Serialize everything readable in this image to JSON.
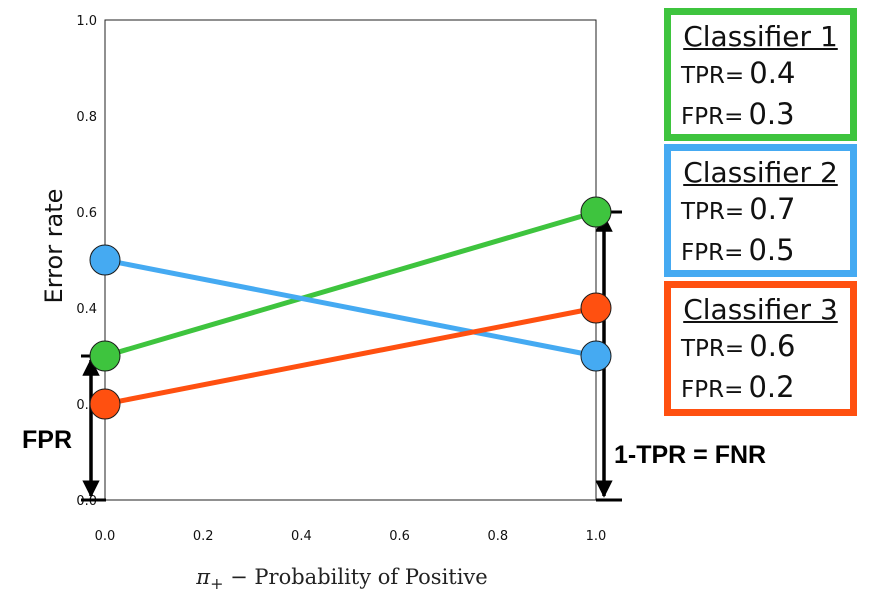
{
  "chart_data": {
    "type": "line",
    "xlabel": "π₊ − Probability of Positive",
    "xlabel_symbol": "π",
    "xlabel_subscript": "+",
    "xlabel_text": " − Probability of Positive",
    "ylabel": "Error rate",
    "xlim": [
      0.0,
      1.0
    ],
    "ylim": [
      0.0,
      1.0
    ],
    "x_ticks": [
      "0.0",
      "0.2",
      "0.4",
      "0.6",
      "0.8",
      "1.0"
    ],
    "y_ticks": [
      "0.0",
      "0.2",
      "0.4",
      "0.6",
      "0.8",
      "1.0"
    ],
    "x": [
      0.0,
      1.0
    ],
    "series": [
      {
        "values": [
          0.3,
          0.6
        ],
        "color": "#3ec43e"
      },
      {
        "values": [
          0.5,
          0.3
        ],
        "color": "#45aaf2"
      },
      {
        "values": [
          0.2,
          0.4
        ],
        "color": "#ff5010"
      }
    ],
    "annotations": [
      "FPR",
      "1-TPR = FNR"
    ]
  },
  "classifiers": [
    {
      "title": "Classifier 1",
      "tpr_label": "TPR",
      "tpr": "0.4",
      "fpr_label": "FPR",
      "fpr": "0.3",
      "color": "#3ec43e"
    },
    {
      "title": "Classifier 2",
      "tpr_label": "TPR",
      "tpr": "0.7",
      "fpr_label": "FPR",
      "fpr": "0.5",
      "color": "#45aaf2"
    },
    {
      "title": "Classifier 3",
      "tpr_label": "TPR",
      "tpr": "0.6",
      "fpr_label": "FPR",
      "fpr": "0.2",
      "color": "#ff5010"
    }
  ],
  "equals_sign": "="
}
